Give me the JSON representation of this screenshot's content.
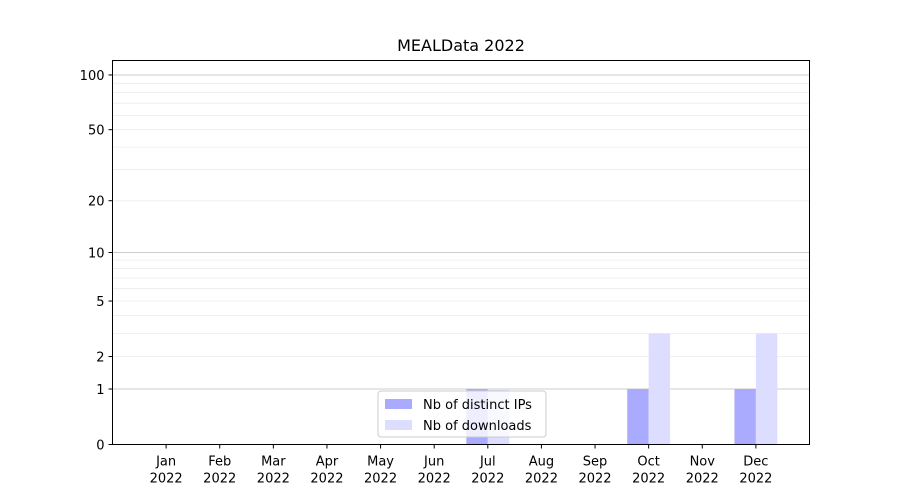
{
  "chart_data": {
    "type": "bar",
    "title": "MEALData 2022",
    "xlabel": "",
    "ylabel": "",
    "y_scale": "symlog",
    "ylim": [
      0,
      120
    ],
    "y_ticks": [
      0,
      1,
      2,
      5,
      10,
      20,
      50,
      100
    ],
    "grid": true,
    "legend_position": "bottom-center",
    "categories": [
      [
        "Jan",
        "2022"
      ],
      [
        "Feb",
        "2022"
      ],
      [
        "Mar",
        "2022"
      ],
      [
        "Apr",
        "2022"
      ],
      [
        "May",
        "2022"
      ],
      [
        "Jun",
        "2022"
      ],
      [
        "Jul",
        "2022"
      ],
      [
        "Aug",
        "2022"
      ],
      [
        "Sep",
        "2022"
      ],
      [
        "Oct",
        "2022"
      ],
      [
        "Nov",
        "2022"
      ],
      [
        "Dec",
        "2022"
      ]
    ],
    "series": [
      {
        "name": "Nb of distinct IPs",
        "color": "#aaaaff",
        "values": [
          0,
          0,
          0,
          0,
          0,
          0,
          1,
          0,
          0,
          1,
          0,
          1
        ]
      },
      {
        "name": "Nb of downloads",
        "color": "#ddddff",
        "values": [
          0,
          0,
          0,
          0,
          0,
          0,
          1,
          0,
          0,
          3,
          0,
          3
        ]
      }
    ]
  }
}
